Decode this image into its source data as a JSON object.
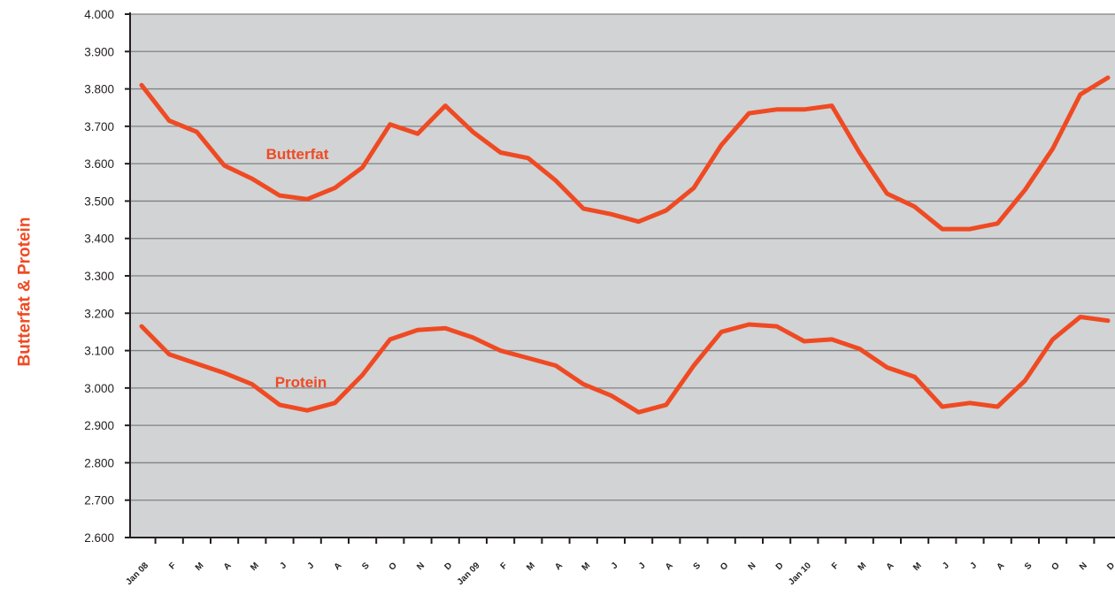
{
  "chart_data": {
    "type": "line",
    "title": "",
    "xlabel": "",
    "ylabel": "Butterfat & Protein",
    "ylim": [
      2.6,
      4.0
    ],
    "ytick_step": 0.1,
    "y_tick_labels": [
      "2.600",
      "2.700",
      "2.800",
      "2.900",
      "3.000",
      "3.100",
      "3.200",
      "3.300",
      "3.400",
      "3.500",
      "3.600",
      "3.700",
      "3.800",
      "3.900",
      "4.000"
    ],
    "grid": true,
    "plot_background": "#d1d3d4",
    "line_color": "#ef4a23",
    "categories": [
      "Jan 08",
      "F",
      "M",
      "A",
      "M",
      "J",
      "J",
      "A",
      "S",
      "O",
      "N",
      "D",
      "Jan 09",
      "F",
      "M",
      "A",
      "M",
      "J",
      "J",
      "A",
      "S",
      "O",
      "N",
      "D",
      "Jan 10",
      "F",
      "M",
      "A",
      "M",
      "J",
      "J",
      "A",
      "S",
      "O",
      "N",
      "D"
    ],
    "series": [
      {
        "name": "Butterfat",
        "values": [
          3.81,
          3.715,
          3.685,
          3.595,
          3.56,
          3.515,
          3.505,
          3.535,
          3.59,
          3.705,
          3.68,
          3.755,
          3.685,
          3.63,
          3.615,
          3.555,
          3.48,
          3.465,
          3.445,
          3.475,
          3.535,
          3.65,
          3.735,
          3.745,
          3.745,
          3.755,
          3.63,
          3.52,
          3.485,
          3.425,
          3.425,
          3.44,
          3.53,
          3.64,
          3.785,
          3.83
        ]
      },
      {
        "name": "Protein",
        "values": [
          3.165,
          3.09,
          3.065,
          3.04,
          3.01,
          2.955,
          2.94,
          2.96,
          3.035,
          3.13,
          3.155,
          3.16,
          3.135,
          3.1,
          3.08,
          3.06,
          3.01,
          2.98,
          2.935,
          2.955,
          3.06,
          3.15,
          3.17,
          3.165,
          3.125,
          3.13,
          3.105,
          3.055,
          3.03,
          2.95,
          2.96,
          2.95,
          3.02,
          3.13,
          3.19,
          3.18
        ]
      }
    ]
  }
}
